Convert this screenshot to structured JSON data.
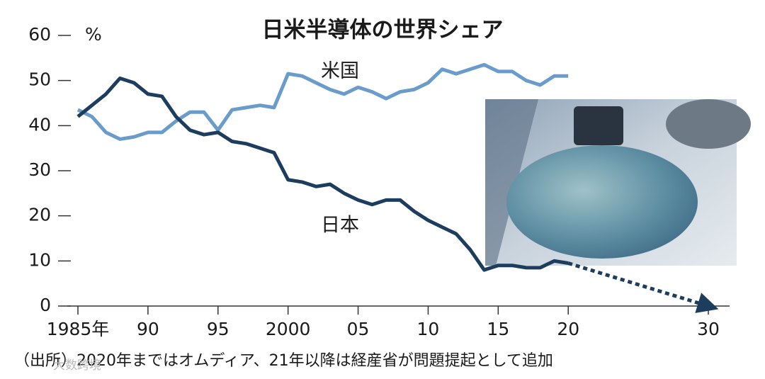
{
  "chart_data": {
    "type": "line",
    "title": "日米半導体の世界シェア",
    "y_unit": "%",
    "x": [
      1985,
      1986,
      1987,
      1988,
      1989,
      1990,
      1991,
      1992,
      1993,
      1994,
      1995,
      1996,
      1997,
      1998,
      1999,
      2000,
      2001,
      2002,
      2003,
      2004,
      2005,
      2006,
      2007,
      2008,
      2009,
      2010,
      2011,
      2012,
      2013,
      2014,
      2015,
      2016,
      2017,
      2018,
      2019,
      2020
    ],
    "series": [
      {
        "name": "米国",
        "color": "#6a9ccb",
        "values": [
          43.5,
          42,
          38.5,
          37,
          37.5,
          38.5,
          38.5,
          41,
          43,
          43,
          39,
          43.5,
          44,
          44.5,
          44,
          51.5,
          51,
          49.5,
          48,
          47,
          48.5,
          47.5,
          46,
          47.5,
          48,
          49.5,
          52.5,
          51.5,
          52.5,
          53.5,
          52,
          52,
          50,
          49,
          51,
          51
        ]
      },
      {
        "name": "日本",
        "color": "#1d3d5e",
        "values": [
          42,
          44.5,
          47,
          50.5,
          49.5,
          47,
          46.5,
          42,
          39,
          38,
          38.5,
          36.5,
          36,
          35,
          34,
          28,
          27.5,
          26.5,
          27,
          25,
          23.5,
          22.5,
          23.5,
          23.5,
          21,
          19,
          17.5,
          16,
          12.5,
          8,
          9,
          9,
          8.5,
          8.5,
          10,
          9.5
        ]
      }
    ],
    "projection": {
      "x": [
        2020,
        2030
      ],
      "values": [
        9.5,
        0
      ],
      "color": "#1d3d5e"
    },
    "xlim": [
      1985,
      2030
    ],
    "xticks": [
      {
        "value": 1985,
        "label": "1985年"
      },
      {
        "value": 1990,
        "label": "90"
      },
      {
        "value": 1995,
        "label": "95"
      },
      2000,
      {
        "value": 2005,
        "label": "05"
      },
      {
        "value": 2010,
        "label": "10"
      },
      {
        "value": 2015,
        "label": "15"
      },
      {
        "value": 2020,
        "label": "20"
      },
      {
        "value": 2030,
        "label": "30"
      }
    ],
    "ylim": [
      0,
      60
    ],
    "yticks": [
      0,
      10,
      20,
      30,
      40,
      50,
      60
    ],
    "grid": false,
    "source": "（出所）2020年まではオムディア、21年以降は経産省が問題提起として追加",
    "watermark": "大数跨境"
  }
}
